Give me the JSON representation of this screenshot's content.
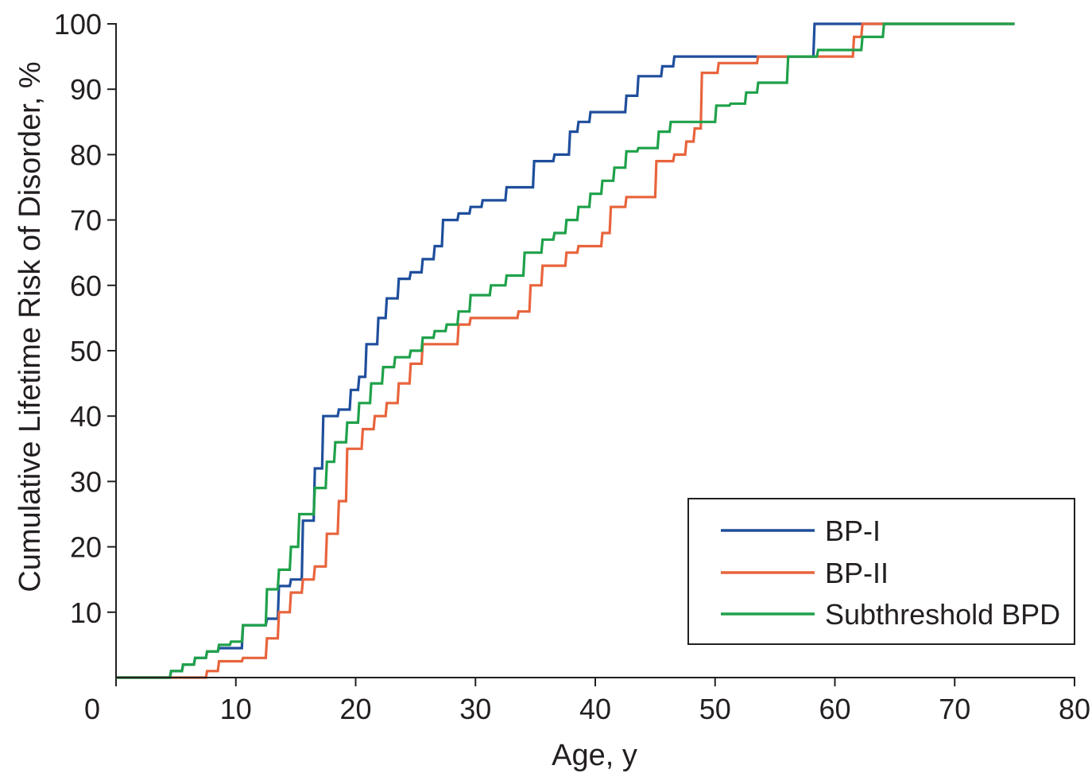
{
  "chart_data": {
    "type": "line",
    "title": "",
    "xlabel": "Age, y",
    "ylabel": "Cumulative Lifetime Risk of Disorder, %",
    "xlim": [
      0,
      80
    ],
    "ylim": [
      0,
      100
    ],
    "x_ticks": [
      0,
      10,
      20,
      30,
      40,
      50,
      60,
      70,
      80
    ],
    "y_ticks": [
      10,
      20,
      30,
      40,
      50,
      60,
      70,
      80,
      90,
      100
    ],
    "grid": false,
    "legend_position": "bottom-right",
    "step": true,
    "series": [
      {
        "name": "BP-I",
        "color": "#1f4e9c",
        "points": [
          [
            0,
            0
          ],
          [
            4.5,
            0
          ],
          [
            4.6,
            1
          ],
          [
            5.5,
            1
          ],
          [
            5.6,
            2
          ],
          [
            6.5,
            2
          ],
          [
            6.6,
            3
          ],
          [
            7.5,
            3
          ],
          [
            7.6,
            4
          ],
          [
            8.5,
            4
          ],
          [
            8.6,
            4.5
          ],
          [
            10.5,
            4.5
          ],
          [
            10.6,
            8
          ],
          [
            12.5,
            8
          ],
          [
            12.6,
            9
          ],
          [
            13.5,
            9
          ],
          [
            13.6,
            14
          ],
          [
            14.5,
            14
          ],
          [
            14.6,
            15
          ],
          [
            15.5,
            15
          ],
          [
            15.6,
            24
          ],
          [
            16.5,
            24
          ],
          [
            16.6,
            32
          ],
          [
            17.2,
            32
          ],
          [
            17.3,
            40
          ],
          [
            18.5,
            40
          ],
          [
            18.6,
            41
          ],
          [
            19.5,
            41
          ],
          [
            19.6,
            44
          ],
          [
            20.2,
            44
          ],
          [
            20.3,
            46
          ],
          [
            20.8,
            46
          ],
          [
            20.9,
            51
          ],
          [
            21.8,
            51
          ],
          [
            21.9,
            55
          ],
          [
            22.5,
            55
          ],
          [
            22.6,
            58
          ],
          [
            23.5,
            58
          ],
          [
            23.6,
            61
          ],
          [
            24.5,
            61
          ],
          [
            24.6,
            62
          ],
          [
            25.5,
            62
          ],
          [
            25.6,
            64
          ],
          [
            26.5,
            64
          ],
          [
            26.6,
            66
          ],
          [
            27.2,
            66
          ],
          [
            27.3,
            70
          ],
          [
            28.5,
            70
          ],
          [
            28.6,
            71
          ],
          [
            29.5,
            71
          ],
          [
            29.6,
            72
          ],
          [
            30.5,
            72
          ],
          [
            30.6,
            73
          ],
          [
            32.5,
            73
          ],
          [
            32.6,
            75
          ],
          [
            34.8,
            75
          ],
          [
            34.9,
            79
          ],
          [
            36.5,
            79
          ],
          [
            36.6,
            80
          ],
          [
            37.8,
            80
          ],
          [
            37.9,
            83.5
          ],
          [
            38.5,
            83.5
          ],
          [
            38.6,
            85
          ],
          [
            39.5,
            85
          ],
          [
            39.6,
            86.5
          ],
          [
            42.5,
            86.5
          ],
          [
            42.6,
            89
          ],
          [
            43.5,
            89
          ],
          [
            43.6,
            92
          ],
          [
            45.5,
            92
          ],
          [
            45.6,
            93.5
          ],
          [
            46.5,
            93.5
          ],
          [
            46.6,
            95
          ],
          [
            58.2,
            95
          ],
          [
            58.3,
            100
          ],
          [
            75,
            100
          ]
        ]
      },
      {
        "name": "BP-II",
        "color": "#e8643c",
        "points": [
          [
            0,
            0
          ],
          [
            7.5,
            0
          ],
          [
            7.6,
            1
          ],
          [
            8.5,
            1
          ],
          [
            8.6,
            2.5
          ],
          [
            10.5,
            2.5
          ],
          [
            10.6,
            3
          ],
          [
            12.5,
            3
          ],
          [
            12.6,
            6
          ],
          [
            13.5,
            6
          ],
          [
            13.6,
            10
          ],
          [
            14.5,
            10
          ],
          [
            14.6,
            13
          ],
          [
            15.5,
            13
          ],
          [
            15.6,
            15
          ],
          [
            16.5,
            15
          ],
          [
            16.6,
            17
          ],
          [
            17.5,
            17
          ],
          [
            17.6,
            22
          ],
          [
            18.5,
            22
          ],
          [
            18.6,
            27
          ],
          [
            19.2,
            27
          ],
          [
            19.3,
            35
          ],
          [
            20.5,
            35
          ],
          [
            20.6,
            38
          ],
          [
            21.5,
            38
          ],
          [
            21.6,
            40
          ],
          [
            22.5,
            40
          ],
          [
            22.6,
            42
          ],
          [
            23.5,
            42
          ],
          [
            23.6,
            45
          ],
          [
            24.5,
            45
          ],
          [
            24.6,
            48
          ],
          [
            25.5,
            48
          ],
          [
            25.6,
            51
          ],
          [
            28.5,
            51
          ],
          [
            28.6,
            54
          ],
          [
            29.5,
            54
          ],
          [
            29.6,
            55
          ],
          [
            33.5,
            55
          ],
          [
            33.6,
            56
          ],
          [
            34.5,
            56
          ],
          [
            34.6,
            60
          ],
          [
            35.5,
            60
          ],
          [
            35.6,
            63
          ],
          [
            37.5,
            63
          ],
          [
            37.6,
            65
          ],
          [
            38.5,
            65
          ],
          [
            38.6,
            66
          ],
          [
            40.5,
            66
          ],
          [
            40.6,
            68
          ],
          [
            41.2,
            68
          ],
          [
            41.3,
            72
          ],
          [
            42.5,
            72
          ],
          [
            42.6,
            73.5
          ],
          [
            45,
            73.5
          ],
          [
            45.1,
            79
          ],
          [
            46.5,
            79
          ],
          [
            46.6,
            80
          ],
          [
            47.5,
            80
          ],
          [
            47.6,
            82
          ],
          [
            48.2,
            82
          ],
          [
            48.3,
            84
          ],
          [
            48.8,
            84
          ],
          [
            48.9,
            92.5
          ],
          [
            50.2,
            92.5
          ],
          [
            50.3,
            94
          ],
          [
            53.5,
            94
          ],
          [
            53.6,
            95
          ],
          [
            61.5,
            95
          ],
          [
            61.6,
            98
          ],
          [
            62.2,
            98
          ],
          [
            62.3,
            100
          ],
          [
            75,
            100
          ]
        ]
      },
      {
        "name": "Subthreshold BPD",
        "color": "#1fa14a",
        "points": [
          [
            0,
            0
          ],
          [
            4.5,
            0
          ],
          [
            4.6,
            1
          ],
          [
            5.5,
            1
          ],
          [
            5.6,
            2
          ],
          [
            6.5,
            2
          ],
          [
            6.6,
            3
          ],
          [
            7.5,
            3
          ],
          [
            7.6,
            4
          ],
          [
            8.5,
            4
          ],
          [
            8.6,
            5
          ],
          [
            9.5,
            5
          ],
          [
            9.6,
            5.5
          ],
          [
            10.5,
            5.5
          ],
          [
            10.6,
            8
          ],
          [
            12.5,
            8
          ],
          [
            12.6,
            13.5
          ],
          [
            13.5,
            13.5
          ],
          [
            13.6,
            16.5
          ],
          [
            14.5,
            16.5
          ],
          [
            14.6,
            20
          ],
          [
            15.2,
            20
          ],
          [
            15.3,
            25
          ],
          [
            16.5,
            25
          ],
          [
            16.6,
            29
          ],
          [
            17.5,
            29
          ],
          [
            17.6,
            33
          ],
          [
            18.2,
            33
          ],
          [
            18.3,
            36
          ],
          [
            19.2,
            36
          ],
          [
            19.3,
            39
          ],
          [
            20.2,
            39
          ],
          [
            20.3,
            42
          ],
          [
            21.2,
            42
          ],
          [
            21.3,
            45
          ],
          [
            22.2,
            45
          ],
          [
            22.3,
            47.5
          ],
          [
            23.2,
            47.5
          ],
          [
            23.3,
            49
          ],
          [
            24.5,
            49
          ],
          [
            24.6,
            50
          ],
          [
            25.5,
            50
          ],
          [
            25.6,
            52
          ],
          [
            26.5,
            52
          ],
          [
            26.6,
            53
          ],
          [
            27.5,
            53
          ],
          [
            27.6,
            54
          ],
          [
            28.5,
            54
          ],
          [
            28.6,
            56
          ],
          [
            29.5,
            56
          ],
          [
            29.6,
            58.5
          ],
          [
            31.2,
            58.5
          ],
          [
            31.3,
            60
          ],
          [
            32.5,
            60
          ],
          [
            32.6,
            61.5
          ],
          [
            34,
            61.5
          ],
          [
            34.1,
            65
          ],
          [
            35.5,
            65
          ],
          [
            35.6,
            67
          ],
          [
            36.5,
            67
          ],
          [
            36.6,
            68
          ],
          [
            37.5,
            68
          ],
          [
            37.6,
            70
          ],
          [
            38.5,
            70
          ],
          [
            38.6,
            72
          ],
          [
            39.5,
            72
          ],
          [
            39.6,
            74
          ],
          [
            40.5,
            74
          ],
          [
            40.6,
            76
          ],
          [
            41.5,
            76
          ],
          [
            41.6,
            78
          ],
          [
            42.5,
            78
          ],
          [
            42.6,
            80.5
          ],
          [
            43.5,
            80.5
          ],
          [
            43.6,
            81
          ],
          [
            45.2,
            81
          ],
          [
            45.3,
            83.5
          ],
          [
            46.2,
            83.5
          ],
          [
            46.3,
            85
          ],
          [
            50,
            85
          ],
          [
            50.1,
            87.5
          ],
          [
            51.2,
            87.5
          ],
          [
            51.3,
            87.8
          ],
          [
            52.5,
            87.8
          ],
          [
            52.6,
            89.5
          ],
          [
            53.5,
            89.5
          ],
          [
            53.6,
            91
          ],
          [
            56,
            91
          ],
          [
            56.1,
            95
          ],
          [
            58.5,
            95
          ],
          [
            58.6,
            96
          ],
          [
            62.2,
            96
          ],
          [
            62.3,
            98
          ],
          [
            64,
            98
          ],
          [
            64.1,
            100
          ],
          [
            75,
            100
          ]
        ]
      }
    ]
  }
}
